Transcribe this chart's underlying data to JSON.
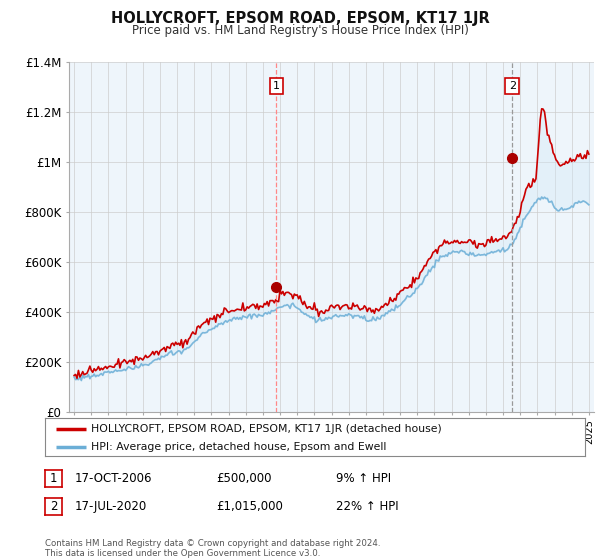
{
  "title": "HOLLYCROFT, EPSOM ROAD, EPSOM, KT17 1JR",
  "subtitle": "Price paid vs. HM Land Registry's House Price Index (HPI)",
  "legend_line1": "HOLLYCROFT, EPSOM ROAD, EPSOM, KT17 1JR (detached house)",
  "legend_line2": "HPI: Average price, detached house, Epsom and Ewell",
  "transaction1_date": "17-OCT-2006",
  "transaction1_price": "£500,000",
  "transaction1_hpi": "9% ↑ HPI",
  "transaction2_date": "17-JUL-2020",
  "transaction2_price": "£1,015,000",
  "transaction2_hpi": "22% ↑ HPI",
  "footer": "Contains HM Land Registry data © Crown copyright and database right 2024.\nThis data is licensed under the Open Government Licence v3.0.",
  "hpi_color": "#6baed6",
  "hpi_fill_color": "#d0e8f8",
  "price_color": "#cc0000",
  "vline1_color": "#ff8888",
  "vline1_style": "--",
  "vline2_color": "#999999",
  "vline2_style": "--",
  "marker_color": "#aa0000",
  "ylim": [
    0,
    1400000
  ],
  "yticks": [
    0,
    200000,
    400000,
    600000,
    800000,
    1000000,
    1200000,
    1400000
  ],
  "ytick_labels": [
    "£0",
    "£200K",
    "£400K",
    "£600K",
    "£800K",
    "£1M",
    "£1.2M",
    "£1.4M"
  ],
  "transaction1_x": 2006.79,
  "transaction2_x": 2020.54,
  "background_color": "#ffffff",
  "plot_bg_color": "#eef5fb",
  "grid_color": "#cccccc",
  "legend_border_color": "#888888"
}
